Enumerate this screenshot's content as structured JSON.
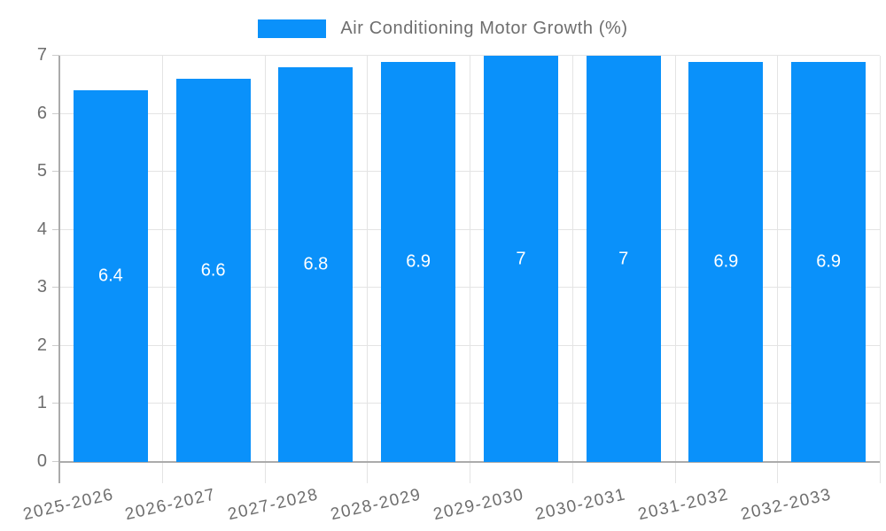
{
  "chart_data": {
    "type": "bar",
    "title": "Air Conditioning Motor Growth (%)",
    "categories": [
      "2025-2026",
      "2026-2027",
      "2027-2028",
      "2028-2029",
      "2029-2030",
      "2030-2031",
      "2031-2032",
      "2032-2033"
    ],
    "values": [
      6.4,
      6.6,
      6.8,
      6.9,
      7,
      7,
      6.9,
      6.9
    ],
    "value_labels": [
      "6.4",
      "6.6",
      "6.8",
      "6.9",
      "7",
      "7",
      "6.9",
      "6.9"
    ],
    "xlabel": "",
    "ylabel": "",
    "ylim": [
      0,
      7
    ],
    "y_ticks": [
      0,
      1,
      2,
      3,
      4,
      5,
      6,
      7
    ],
    "grid": true,
    "legend_position": "top",
    "value_label_position": "bar-center",
    "colors": {
      "bar": "#0A91FA",
      "grid": "#e4e4e4",
      "axis": "#ababab",
      "tick": "#cccccc",
      "text": "#6e6e6e",
      "legend_text": "#6e6e6e",
      "bar_label": "#ffffff",
      "background": "#ffffff"
    }
  }
}
